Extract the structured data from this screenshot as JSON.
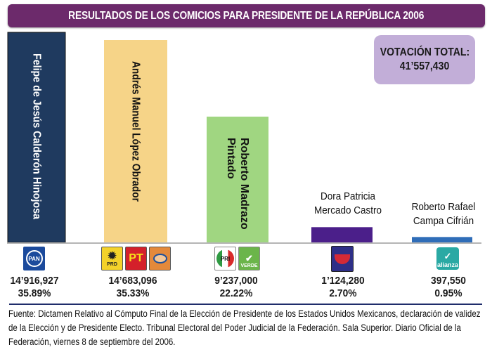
{
  "chart_data": {
    "type": "bar",
    "title": "RESULTADOS DE LOS COMICIOS PARA PRESIDENTE DE LA REPÚBLICA 2006",
    "xlabel": "",
    "ylabel": "",
    "ylim": [
      0,
      15500000
    ],
    "grid": false,
    "categories": [
      "Felipe de Jesús Calderón Hinojosa",
      "Andrés Manuel López Obrador",
      "Roberto Madrazo Pintado",
      "Dora Patricia Mercado Castro",
      "Roberto Rafael Campa Cifrián"
    ],
    "values": [
      14916927,
      14683096,
      9237000,
      1124280,
      397550
    ],
    "value_labels": [
      "14’916,927",
      "14’683,096",
      "9’237,000",
      "1’124,280",
      "397,550"
    ],
    "percent_labels": [
      "35.89%",
      "35.33%",
      "22.22%",
      "2.70%",
      "0.95%"
    ],
    "bar_colors": [
      "#1f3a5f",
      "#f6d488",
      "#a0d681",
      "#4b1f8a",
      "#2f6db8"
    ],
    "label_colors": [
      "#ffffff",
      "#111111",
      "#111111",
      "#111111",
      "#111111"
    ]
  },
  "header": {
    "title": "RESULTADOS DE LOS COMICIOS PARA PRESIDENTE DE LA REPÚBLICA 2006"
  },
  "total": {
    "label": "VOTACIÓN TOTAL:",
    "value": "41’557,430"
  },
  "candidates": [
    {
      "name_lines": [
        "Felipe de Jesús Calderón Hinojosa"
      ],
      "parties": [
        "PAN"
      ]
    },
    {
      "name_lines": [
        "Andrés Manuel López Obrador"
      ],
      "parties": [
        "PRD",
        "PT",
        "Convergencia"
      ]
    },
    {
      "name_lines": [
        "Roberto Madrazo",
        "Pintado"
      ],
      "parties": [
        "PRI",
        "VERDE"
      ]
    },
    {
      "name_lines": [
        "Dora Patricia",
        "Mercado Castro"
      ],
      "parties": [
        "Alternativa"
      ]
    },
    {
      "name_lines": [
        "Roberto Rafael",
        "Campa Cifrián"
      ],
      "parties": [
        "alianza"
      ]
    }
  ],
  "source": "Fuente: Dictamen Relativo al Cómputo Final de la Elección de Presidente de los Estados Unidos Mexicanos, declaración de validez de la Elección y de Presidente Electo. Tribunal Electoral del Poder Judicial de la Federación. Sala Superior. Diario Oficial de la Federación, viernes 8 de septiembre del 2006."
}
